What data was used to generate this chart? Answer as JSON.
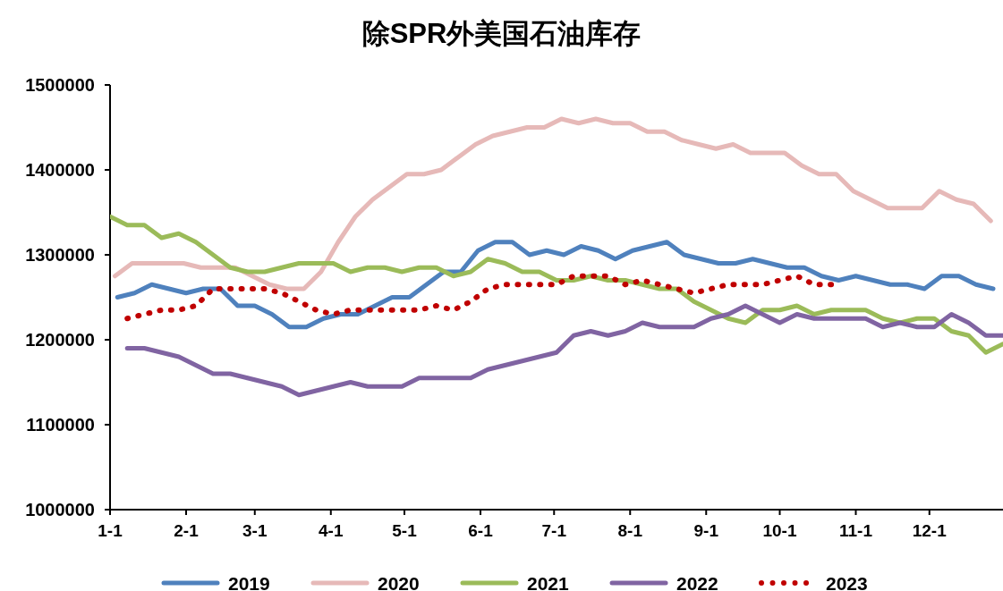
{
  "chart_data": {
    "type": "line",
    "title": "除SPR外美国石油库存",
    "xlim": [
      "--01-01",
      "--12-31"
    ],
    "xticks": [
      {
        "value": "--01-01",
        "label": "1-1"
      },
      {
        "value": "--02-01",
        "label": "2-1"
      },
      {
        "value": "--03-01",
        "label": "3-1"
      },
      {
        "value": "--04-01",
        "label": "4-1"
      },
      {
        "value": "--05-01",
        "label": "5-1"
      },
      {
        "value": "--06-01",
        "label": "6-1"
      },
      {
        "value": "--07-01",
        "label": "7-1"
      },
      {
        "value": "--08-01",
        "label": "8-1"
      },
      {
        "value": "--09-01",
        "label": "9-1"
      },
      {
        "value": "--10-01",
        "label": "10-1"
      },
      {
        "value": "--11-01",
        "label": "11-1"
      },
      {
        "value": "--12-01",
        "label": "12-1"
      }
    ],
    "ylim": [
      1000000,
      1500000
    ],
    "yticks": [
      1000000,
      1100000,
      1200000,
      1300000,
      1400000,
      1500000
    ],
    "legend": "bottom",
    "marker": "none",
    "series": [
      {
        "name": "2019",
        "color": "#4f81bd",
        "line_style": "solid",
        "x": [
          "--01-04",
          "--01-11",
          "--01-18",
          "--01-25",
          "--02-01",
          "--02-08",
          "--02-15",
          "--02-22",
          "--03-01",
          "--03-08",
          "--03-15",
          "--03-22",
          "--03-29",
          "--04-05",
          "--04-12",
          "--04-19",
          "--04-26",
          "--05-03",
          "--05-10",
          "--05-17",
          "--05-24",
          "--05-31",
          "--06-07",
          "--06-14",
          "--06-21",
          "--06-28",
          "--07-05",
          "--07-12",
          "--07-19",
          "--07-26",
          "--08-02",
          "--08-09",
          "--08-16",
          "--08-23",
          "--08-30",
          "--09-06",
          "--09-13",
          "--09-20",
          "--09-27",
          "--10-04",
          "--10-11",
          "--10-18",
          "--10-25",
          "--11-01",
          "--11-08",
          "--11-15",
          "--11-22",
          "--11-29",
          "--12-06",
          "--12-13",
          "--12-20",
          "--12-27"
        ],
        "values": [
          1250000,
          1255000,
          1265000,
          1260000,
          1255000,
          1260000,
          1260000,
          1240000,
          1240000,
          1230000,
          1215000,
          1215000,
          1225000,
          1230000,
          1230000,
          1240000,
          1250000,
          1250000,
          1265000,
          1280000,
          1280000,
          1305000,
          1315000,
          1315000,
          1300000,
          1305000,
          1300000,
          1310000,
          1305000,
          1295000,
          1305000,
          1310000,
          1315000,
          1300000,
          1295000,
          1290000,
          1290000,
          1295000,
          1290000,
          1285000,
          1285000,
          1275000,
          1270000,
          1275000,
          1270000,
          1265000,
          1265000,
          1260000,
          1275000,
          1275000,
          1265000,
          1260000
        ]
      },
      {
        "name": "2020",
        "color": "#e6b9b8",
        "line_style": "solid",
        "x": [
          "--01-03",
          "--01-10",
          "--01-17",
          "--01-24",
          "--01-31",
          "--02-07",
          "--02-14",
          "--02-21",
          "--02-28",
          "--03-07",
          "--03-14",
          "--03-21",
          "--03-28",
          "--04-04",
          "--04-11",
          "--04-18",
          "--04-25",
          "--05-02",
          "--05-09",
          "--05-16",
          "--05-23",
          "--05-30",
          "--06-06",
          "--06-13",
          "--06-20",
          "--06-27",
          "--07-04",
          "--07-11",
          "--07-18",
          "--07-25",
          "--08-01",
          "--08-08",
          "--08-15",
          "--08-22",
          "--08-29",
          "--09-05",
          "--09-12",
          "--09-19",
          "--09-26",
          "--10-03",
          "--10-10",
          "--10-17",
          "--10-24",
          "--10-31",
          "--11-07",
          "--11-14",
          "--11-21",
          "--11-28",
          "--12-05",
          "--12-12",
          "--12-19",
          "--12-26"
        ],
        "values": [
          1275000,
          1290000,
          1290000,
          1290000,
          1290000,
          1285000,
          1285000,
          1285000,
          1275000,
          1265000,
          1260000,
          1260000,
          1280000,
          1315000,
          1345000,
          1365000,
          1380000,
          1395000,
          1395000,
          1400000,
          1415000,
          1430000,
          1440000,
          1445000,
          1450000,
          1450000,
          1460000,
          1455000,
          1460000,
          1455000,
          1455000,
          1445000,
          1445000,
          1435000,
          1430000,
          1425000,
          1430000,
          1420000,
          1420000,
          1420000,
          1405000,
          1395000,
          1395000,
          1375000,
          1365000,
          1355000,
          1355000,
          1355000,
          1375000,
          1365000,
          1360000,
          1340000
        ]
      },
      {
        "name": "2021",
        "color": "#9bbb59",
        "line_style": "solid",
        "x": [
          "--01-01",
          "--01-08",
          "--01-15",
          "--01-22",
          "--01-29",
          "--02-05",
          "--02-12",
          "--02-19",
          "--02-26",
          "--03-05",
          "--03-12",
          "--03-19",
          "--03-26",
          "--04-02",
          "--04-09",
          "--04-16",
          "--04-23",
          "--04-30",
          "--05-07",
          "--05-14",
          "--05-21",
          "--05-28",
          "--06-04",
          "--06-11",
          "--06-18",
          "--06-25",
          "--07-02",
          "--07-09",
          "--07-16",
          "--07-23",
          "--07-30",
          "--08-06",
          "--08-13",
          "--08-20",
          "--08-27",
          "--09-03",
          "--09-10",
          "--09-17",
          "--09-24",
          "--10-01",
          "--10-08",
          "--10-15",
          "--10-22",
          "--10-29",
          "--11-05",
          "--11-12",
          "--11-19",
          "--11-26",
          "--12-03",
          "--12-10",
          "--12-17",
          "--12-24",
          "--12-31"
        ],
        "values": [
          1345000,
          1335000,
          1335000,
          1320000,
          1325000,
          1315000,
          1300000,
          1285000,
          1280000,
          1280000,
          1285000,
          1290000,
          1290000,
          1290000,
          1280000,
          1285000,
          1285000,
          1280000,
          1285000,
          1285000,
          1275000,
          1280000,
          1295000,
          1290000,
          1280000,
          1280000,
          1270000,
          1270000,
          1275000,
          1270000,
          1270000,
          1265000,
          1260000,
          1260000,
          1245000,
          1235000,
          1225000,
          1220000,
          1235000,
          1235000,
          1240000,
          1230000,
          1235000,
          1235000,
          1235000,
          1225000,
          1220000,
          1225000,
          1225000,
          1210000,
          1205000,
          1185000,
          1195000
        ]
      },
      {
        "name": "2022",
        "color": "#8064a2",
        "line_style": "solid",
        "x": [
          "--01-08",
          "--01-15",
          "--01-22",
          "--01-29",
          "--02-05",
          "--02-12",
          "--02-19",
          "--02-26",
          "--03-05",
          "--03-12",
          "--03-19",
          "--03-26",
          "--04-02",
          "--04-09",
          "--04-16",
          "--04-23",
          "--04-30",
          "--05-07",
          "--05-14",
          "--05-21",
          "--05-28",
          "--06-04",
          "--06-11",
          "--06-18",
          "--06-25",
          "--07-02",
          "--07-09",
          "--07-16",
          "--07-23",
          "--07-30",
          "--08-06",
          "--08-13",
          "--08-20",
          "--08-27",
          "--09-03",
          "--09-10",
          "--09-17",
          "--09-24",
          "--10-01",
          "--10-08",
          "--10-15",
          "--10-22",
          "--10-29",
          "--11-05",
          "--11-12",
          "--11-19",
          "--11-26",
          "--12-03",
          "--12-10",
          "--12-17",
          "--12-24",
          "--12-31"
        ],
        "values": [
          1190000,
          1190000,
          1185000,
          1180000,
          1170000,
          1160000,
          1160000,
          1155000,
          1150000,
          1145000,
          1135000,
          1140000,
          1145000,
          1150000,
          1145000,
          1145000,
          1145000,
          1155000,
          1155000,
          1155000,
          1155000,
          1165000,
          1170000,
          1175000,
          1180000,
          1185000,
          1205000,
          1210000,
          1205000,
          1210000,
          1220000,
          1215000,
          1215000,
          1215000,
          1225000,
          1230000,
          1240000,
          1230000,
          1220000,
          1230000,
          1225000,
          1225000,
          1225000,
          1225000,
          1215000,
          1220000,
          1215000,
          1215000,
          1230000,
          1220000,
          1205000,
          1205000
        ]
      },
      {
        "name": "2023",
        "color": "#c00000",
        "line_style": "dotted",
        "x": [
          "--01-08",
          "--01-15",
          "--01-22",
          "--01-29",
          "--02-05",
          "--02-12",
          "--02-19",
          "--02-26",
          "--03-05",
          "--03-12",
          "--03-19",
          "--03-26",
          "--04-02",
          "--04-09",
          "--04-16",
          "--04-23",
          "--04-30",
          "--05-07",
          "--05-14",
          "--05-21",
          "--05-28",
          "--06-04",
          "--06-11",
          "--06-18",
          "--06-25",
          "--07-02",
          "--07-09",
          "--07-16",
          "--07-23",
          "--07-30",
          "--08-06",
          "--08-13",
          "--08-20",
          "--08-27",
          "--09-03",
          "--09-10",
          "--09-17",
          "--09-24",
          "--10-01",
          "--10-08",
          "--10-15",
          "--10-22"
        ],
        "values": [
          1225000,
          1230000,
          1235000,
          1235000,
          1240000,
          1260000,
          1260000,
          1260000,
          1260000,
          1255000,
          1245000,
          1235000,
          1230000,
          1235000,
          1235000,
          1235000,
          1235000,
          1235000,
          1240000,
          1235000,
          1245000,
          1260000,
          1265000,
          1265000,
          1265000,
          1265000,
          1275000,
          1275000,
          1275000,
          1265000,
          1270000,
          1265000,
          1260000,
          1255000,
          1260000,
          1265000,
          1265000,
          1265000,
          1270000,
          1275000,
          1265000,
          1265000
        ]
      }
    ]
  }
}
